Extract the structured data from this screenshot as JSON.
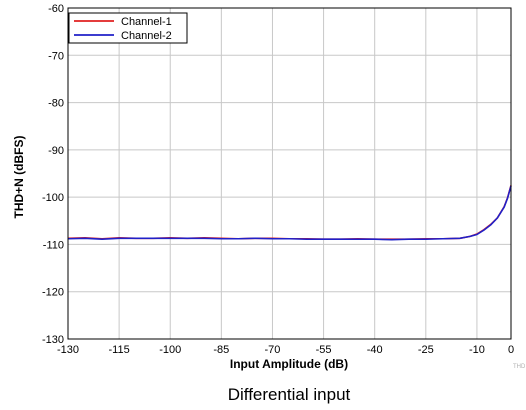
{
  "chart_data": {
    "type": "line",
    "title": "",
    "xlabel": "Input Amplitude (dB)",
    "ylabel": "THD+N (dBFS)",
    "xlim": [
      -130,
      0
    ],
    "ylim": [
      -130,
      -60
    ],
    "x_ticks": [
      -130,
      -115,
      -100,
      -85,
      -70,
      -55,
      -40,
      -25,
      -10,
      0
    ],
    "y_ticks": [
      -60,
      -70,
      -80,
      -90,
      -100,
      -110,
      -120,
      -130
    ],
    "grid": true,
    "legend_position": "top-left",
    "x": [
      -130,
      -125,
      -120,
      -115,
      -110,
      -105,
      -100,
      -95,
      -90,
      -85,
      -80,
      -75,
      -70,
      -65,
      -60,
      -55,
      -50,
      -45,
      -40,
      -35,
      -30,
      -25,
      -20,
      -15,
      -12,
      -10,
      -8,
      -6,
      -4,
      -2,
      -1,
      0
    ],
    "series": [
      {
        "name": "Channel-1",
        "color": "#e02020",
        "values": [
          -108.7,
          -108.6,
          -108.8,
          -108.6,
          -108.7,
          -108.7,
          -108.6,
          -108.7,
          -108.6,
          -108.7,
          -108.8,
          -108.7,
          -108.7,
          -108.8,
          -108.8,
          -108.9,
          -108.9,
          -108.8,
          -108.9,
          -108.9,
          -108.9,
          -108.8,
          -108.8,
          -108.7,
          -108.3,
          -107.8,
          -106.9,
          -105.8,
          -104.4,
          -102.0,
          -100.1,
          -97.5
        ]
      },
      {
        "name": "Channel-2",
        "color": "#2020c8",
        "values": [
          -108.8,
          -108.7,
          -108.9,
          -108.7,
          -108.7,
          -108.7,
          -108.7,
          -108.7,
          -108.7,
          -108.8,
          -108.8,
          -108.7,
          -108.8,
          -108.8,
          -108.9,
          -108.9,
          -108.9,
          -108.9,
          -108.9,
          -109.0,
          -108.9,
          -108.9,
          -108.8,
          -108.7,
          -108.3,
          -107.9,
          -107.0,
          -105.9,
          -104.4,
          -102.1,
          -100.2,
          -97.6
        ]
      }
    ]
  },
  "caption": "Differential input",
  "watermark": "THD"
}
